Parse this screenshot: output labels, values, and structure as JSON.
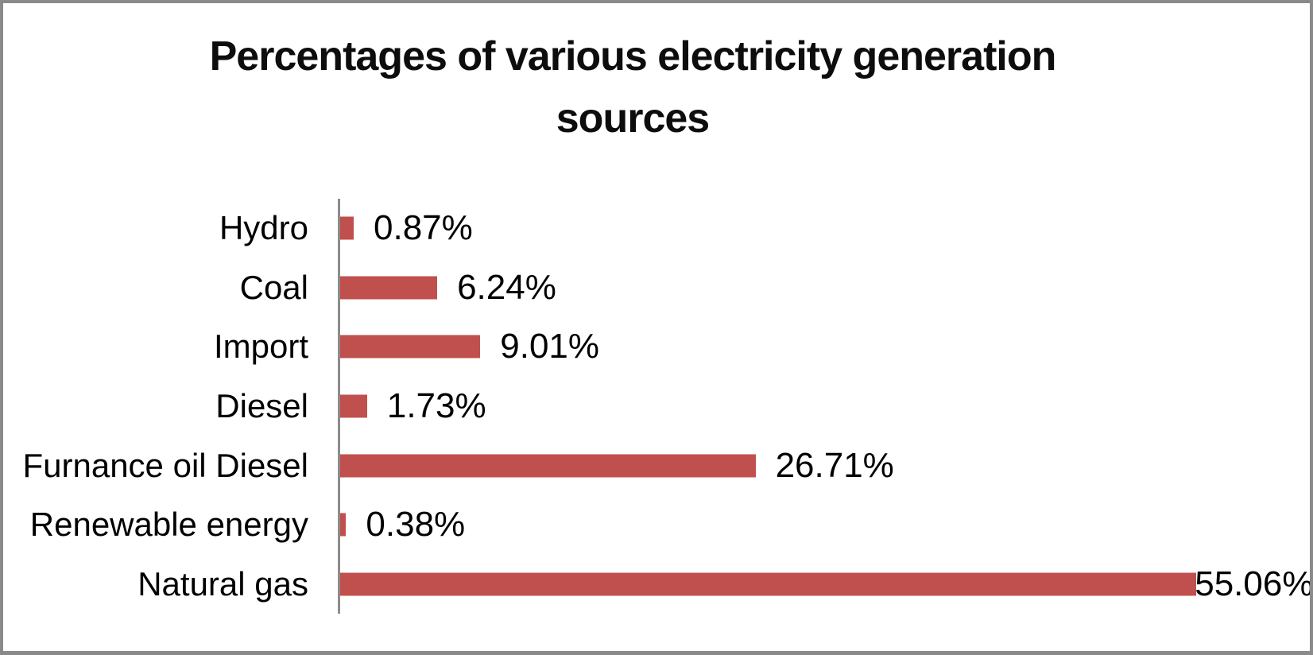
{
  "window": {
    "background_color": "#ffffff",
    "border_color": "#8a8a8a"
  },
  "chart_data": {
    "type": "bar",
    "orientation": "horizontal",
    "title": "Percentages of various electricity generation sources",
    "categories": [
      "Hydro",
      "Coal",
      "Import",
      "Diesel",
      "Furnance oil Diesel",
      "Renewable energy",
      "Natural gas"
    ],
    "values": [
      0.87,
      6.24,
      9.01,
      1.73,
      26.71,
      0.38,
      55.06
    ],
    "data_labels": [
      "0.87%",
      "6.24%",
      "9.01%",
      "1.73%",
      "26.71%",
      "0.38%",
      "55.06%"
    ],
    "xlabel": "",
    "ylabel": "",
    "xlim": [
      0,
      62
    ],
    "grid": false,
    "legend": false,
    "bar_color": "#C0504D",
    "axis_line_color": "#8c8c8c",
    "text_color": "#000000"
  }
}
